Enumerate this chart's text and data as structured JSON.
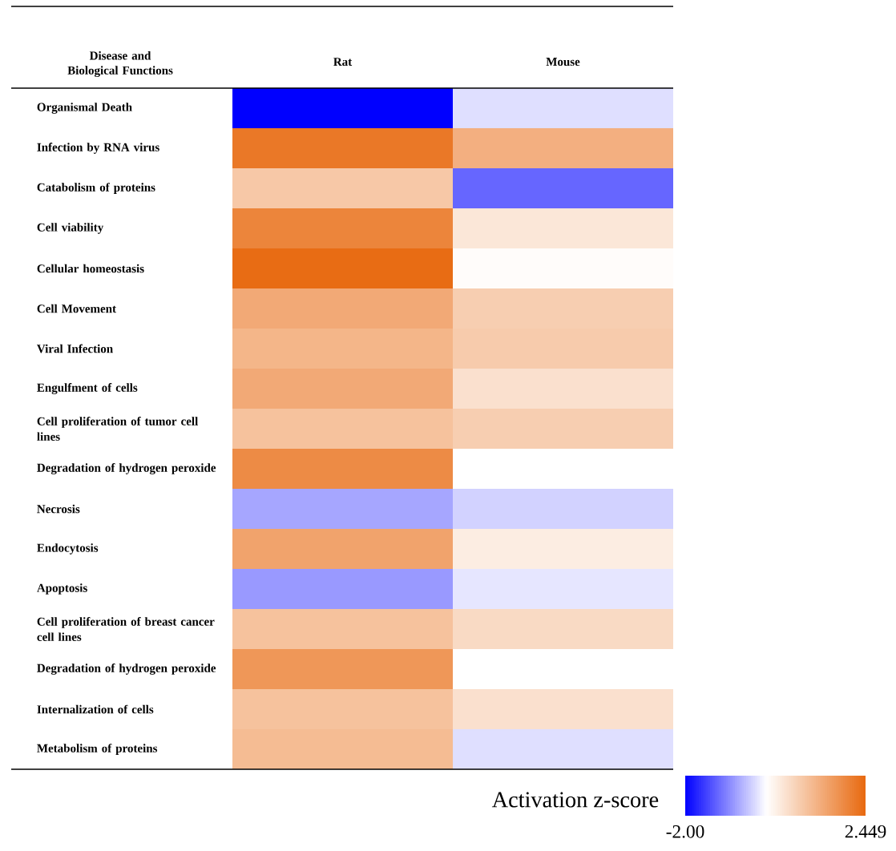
{
  "chart_data": {
    "type": "heatmap",
    "ylabel": "Disease and Biological Functions",
    "clabel": "Activation z-score",
    "categories": [
      "Rat",
      "Mouse"
    ],
    "y_categories": [
      "Organismal Death",
      "Infection by RNA virus",
      "Catabolism of proteins",
      "Cell viability",
      "Cellular homeostasis",
      "Cell Movement",
      "Viral Infection",
      "Engulfment of cells",
      "Cell proliferation of tumor cell lines",
      "Degradation of hydrogen peroxide",
      "Necrosis",
      "Endocytosis",
      "Apoptosis",
      "Cell proliferation of breast cancer cell lines",
      "Degradation of hydrogen peroxide",
      "Internalization of cells",
      "Metabolism of proteins"
    ],
    "cells": [
      [
        -2.0,
        -0.25
      ],
      [
        2.2,
        1.3
      ],
      [
        0.9,
        -1.2
      ],
      [
        2.0,
        0.4
      ],
      [
        2.4,
        0.05
      ],
      [
        1.4,
        0.8
      ],
      [
        1.2,
        0.85
      ],
      [
        1.4,
        0.5
      ],
      [
        1.0,
        0.8
      ],
      [
        1.9,
        0.0
      ],
      [
        -0.7,
        -0.35
      ],
      [
        1.5,
        0.3
      ],
      [
        -0.8,
        -0.2
      ],
      [
        1.0,
        0.6
      ],
      [
        1.7,
        0.0
      ],
      [
        1.0,
        0.5
      ],
      [
        1.1,
        -0.25
      ]
    ],
    "clim": [
      -2,
      2.449
    ],
    "cticks": [
      {
        "value": -2,
        "label": "-2.00"
      },
      2.449
    ]
  }
}
